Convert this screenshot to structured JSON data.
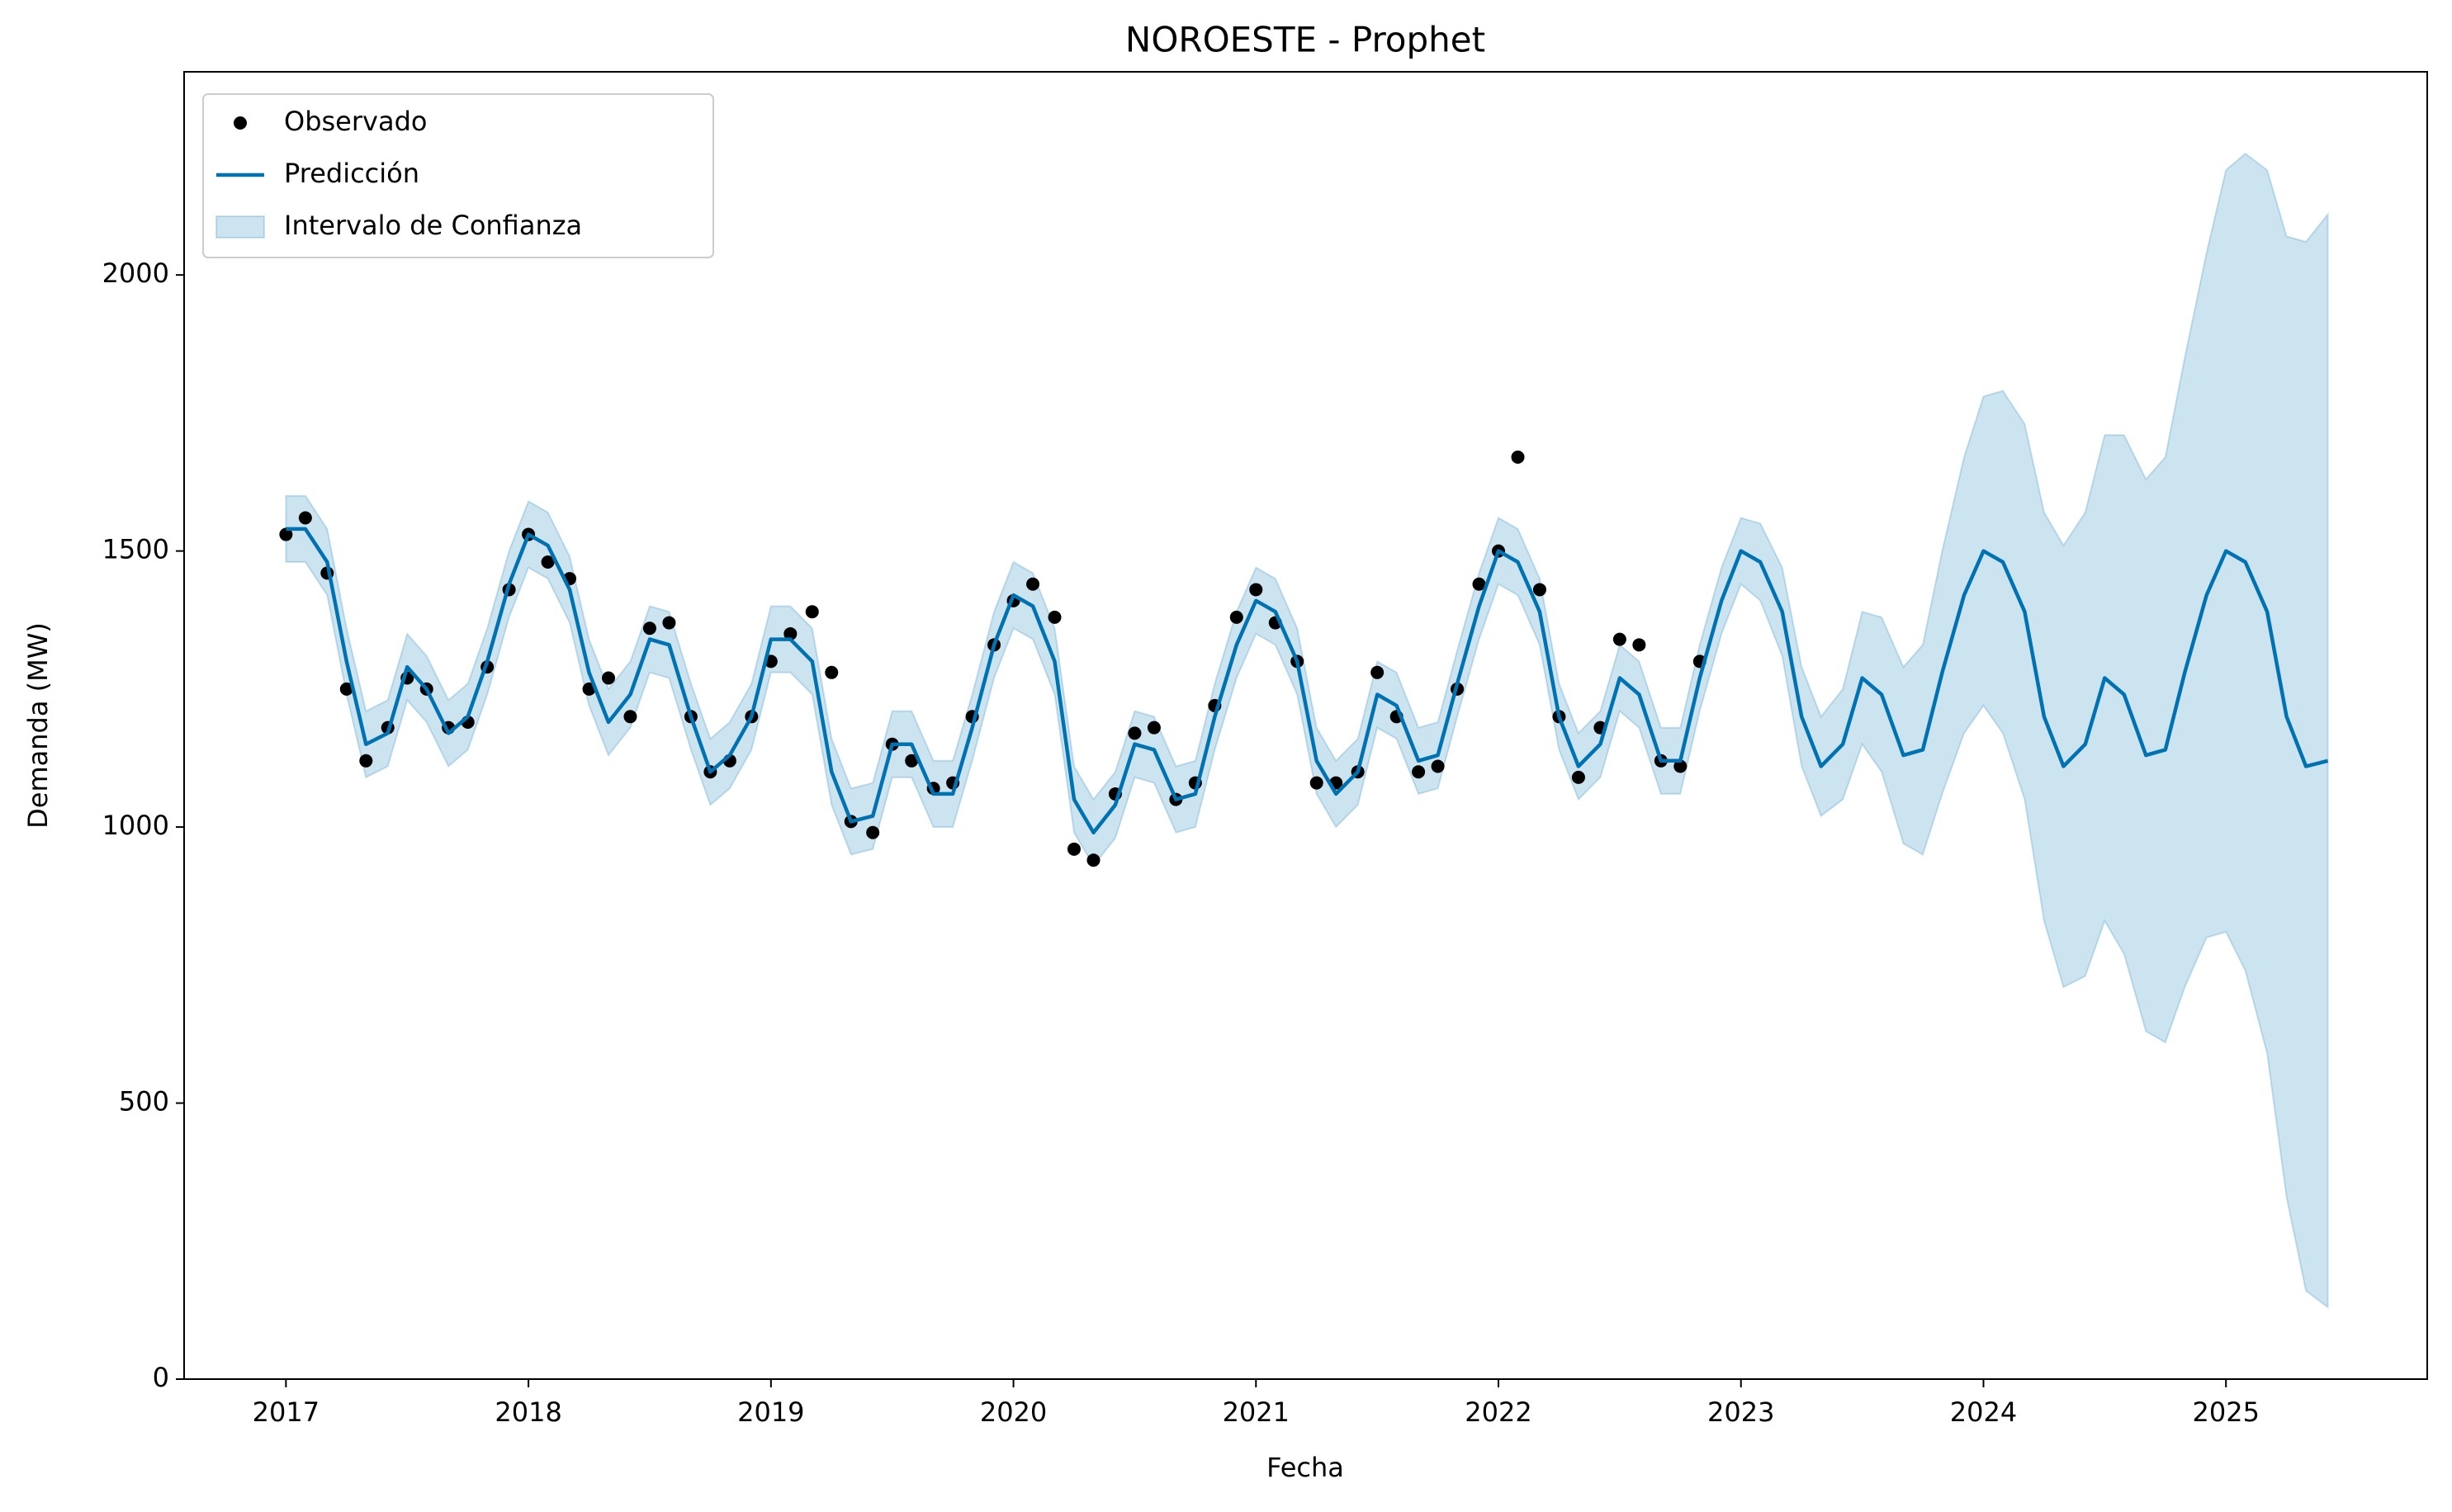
{
  "chart_data": {
    "type": "line",
    "title": "NOROESTE - Prophet",
    "x_label": "Fecha",
    "y_label": "Demanda (MW)",
    "x": [
      2017.0,
      2017.08,
      2017.17,
      2017.25,
      2017.33,
      2017.42,
      2017.5,
      2017.58,
      2017.67,
      2017.75,
      2017.83,
      2017.92,
      2018.0,
      2018.08,
      2018.17,
      2018.25,
      2018.33,
      2018.42,
      2018.5,
      2018.58,
      2018.67,
      2018.75,
      2018.83,
      2018.92,
      2019.0,
      2019.08,
      2019.17,
      2019.25,
      2019.33,
      2019.42,
      2019.5,
      2019.58,
      2019.67,
      2019.75,
      2019.83,
      2019.92,
      2020.0,
      2020.08,
      2020.17,
      2020.25,
      2020.33,
      2020.42,
      2020.5,
      2020.58,
      2020.67,
      2020.75,
      2020.83,
      2020.92,
      2021.0,
      2021.08,
      2021.17,
      2021.25,
      2021.33,
      2021.42,
      2021.5,
      2021.58,
      2021.67,
      2021.75,
      2021.83,
      2021.92,
      2022.0,
      2022.08,
      2022.17,
      2022.25,
      2022.33,
      2022.42,
      2022.5,
      2022.58,
      2022.67,
      2022.75,
      2022.83,
      2022.92,
      2023.0,
      2023.08,
      2023.17,
      2023.25,
      2023.33,
      2023.42,
      2023.5,
      2023.58,
      2023.67,
      2023.75,
      2023.83,
      2023.92,
      2024.0,
      2024.08,
      2024.17,
      2024.25,
      2024.33,
      2024.42,
      2024.5,
      2024.58,
      2024.67,
      2024.75,
      2024.83,
      2024.92,
      2025.0,
      2025.08,
      2025.17,
      2025.25,
      2025.33,
      2025.42
    ],
    "series": [
      {
        "name": "Observado",
        "kind": "scatter",
        "color": "#000000",
        "values": [
          1530,
          1560,
          1460,
          1250,
          1120,
          1180,
          1270,
          1250,
          1180,
          1190,
          1290,
          1430,
          1530,
          1480,
          1450,
          1250,
          1270,
          1200,
          1360,
          1370,
          1200,
          1100,
          1120,
          1200,
          1300,
          1350,
          1390,
          1280,
          1010,
          990,
          1150,
          1120,
          1070,
          1080,
          1200,
          1330,
          1410,
          1440,
          1380,
          960,
          940,
          1060,
          1170,
          1180,
          1050,
          1080,
          1220,
          1380,
          1430,
          1370,
          1300,
          1080,
          1080,
          1100,
          1280,
          1200,
          1100,
          1110,
          1250,
          1440,
          1500,
          1670,
          1430,
          1200,
          1090,
          1180,
          1340,
          1330,
          1120,
          1110,
          1300,
          null,
          null,
          null,
          null,
          null,
          null,
          null,
          null,
          null,
          null,
          null,
          null,
          null,
          null,
          null,
          null,
          null,
          null,
          null,
          null,
          null,
          null,
          null,
          null,
          null,
          null,
          null,
          null,
          null,
          null,
          null
        ]
      },
      {
        "name": "Predicción",
        "kind": "line",
        "color": "#0072b2",
        "values": [
          1540,
          1540,
          1480,
          1300,
          1150,
          1170,
          1290,
          1250,
          1170,
          1200,
          1300,
          1440,
          1530,
          1510,
          1430,
          1280,
          1190,
          1240,
          1340,
          1330,
          1200,
          1100,
          1130,
          1200,
          1340,
          1340,
          1300,
          1100,
          1010,
          1020,
          1150,
          1150,
          1060,
          1060,
          1180,
          1330,
          1420,
          1400,
          1300,
          1050,
          990,
          1040,
          1150,
          1140,
          1050,
          1060,
          1200,
          1330,
          1410,
          1390,
          1300,
          1120,
          1060,
          1100,
          1240,
          1220,
          1120,
          1130,
          1260,
          1400,
          1500,
          1480,
          1390,
          1200,
          1110,
          1150,
          1270,
          1240,
          1120,
          1120,
          1270,
          1410,
          1500,
          1480,
          1390,
          1200,
          1110,
          1150,
          1270,
          1240,
          1130,
          1140,
          1280,
          1420,
          1500,
          1480,
          1390,
          1200,
          1110,
          1150,
          1270,
          1240,
          1130,
          1140,
          1280,
          1420,
          1500,
          1480,
          1390,
          1200,
          1110,
          1120
        ]
      },
      {
        "name": "Intervalo de Confianza",
        "kind": "band",
        "color": "#0072b2",
        "lower": [
          1480,
          1480,
          1420,
          1240,
          1090,
          1110,
          1230,
          1190,
          1110,
          1140,
          1240,
          1380,
          1470,
          1450,
          1370,
          1220,
          1130,
          1180,
          1280,
          1270,
          1140,
          1040,
          1070,
          1140,
          1280,
          1280,
          1240,
          1040,
          950,
          960,
          1090,
          1090,
          1000,
          1000,
          1120,
          1270,
          1360,
          1340,
          1240,
          990,
          930,
          980,
          1090,
          1080,
          990,
          1000,
          1140,
          1270,
          1350,
          1330,
          1240,
          1060,
          1000,
          1040,
          1180,
          1160,
          1060,
          1070,
          1200,
          1340,
          1440,
          1420,
          1330,
          1140,
          1050,
          1090,
          1210,
          1180,
          1060,
          1060,
          1210,
          1350,
          1440,
          1410,
          1310,
          1110,
          1020,
          1050,
          1150,
          1100,
          970,
          950,
          1060,
          1170,
          1220,
          1170,
          1050,
          830,
          710,
          730,
          830,
          770,
          630,
          610,
          710,
          800,
          810,
          740,
          590,
          330,
          160,
          130
        ],
        "upper": [
          1600,
          1600,
          1540,
          1360,
          1210,
          1230,
          1350,
          1310,
          1230,
          1260,
          1360,
          1500,
          1590,
          1570,
          1490,
          1340,
          1250,
          1300,
          1400,
          1390,
          1260,
          1160,
          1190,
          1260,
          1400,
          1400,
          1360,
          1160,
          1070,
          1080,
          1210,
          1210,
          1120,
          1120,
          1240,
          1390,
          1480,
          1460,
          1360,
          1110,
          1050,
          1100,
          1210,
          1200,
          1110,
          1120,
          1260,
          1390,
          1470,
          1450,
          1360,
          1180,
          1120,
          1160,
          1300,
          1280,
          1180,
          1190,
          1320,
          1460,
          1560,
          1540,
          1450,
          1260,
          1170,
          1210,
          1330,
          1300,
          1180,
          1180,
          1330,
          1470,
          1560,
          1550,
          1470,
          1290,
          1200,
          1250,
          1390,
          1380,
          1290,
          1330,
          1500,
          1670,
          1780,
          1790,
          1730,
          1570,
          1510,
          1570,
          1710,
          1710,
          1630,
          1670,
          1850,
          2040,
          2190,
          2220,
          2190,
          2070,
          2060,
          2110
        ]
      }
    ],
    "xlim": [
      2016.58,
      2025.83
    ],
    "xticks": [
      2017,
      2018,
      2019,
      2020,
      2021,
      2022,
      2023,
      2024,
      2025
    ],
    "ylim": [
      0,
      2368
    ],
    "yticks": [
      0,
      500,
      1000,
      1500,
      2000
    ],
    "legend": "upper left"
  }
}
